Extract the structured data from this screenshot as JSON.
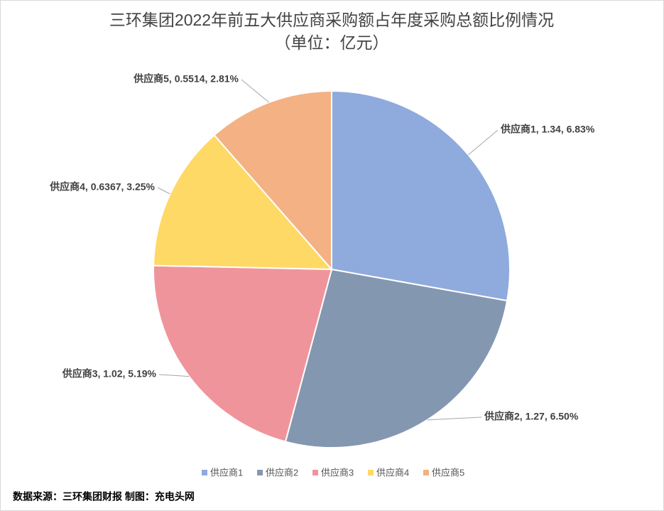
{
  "chart_data": {
    "type": "pie",
    "title": "三环集团2022年前五大供应商采购额占年度采购总额比例情况",
    "subtitle": "（单位：亿元）",
    "categories": [
      "供应商1",
      "供应商2",
      "供应商3",
      "供应商4",
      "供应商5"
    ],
    "values": [
      1.34,
      1.27,
      1.02,
      0.6367,
      0.5514
    ],
    "value_labels": [
      "供应商1, 1.34, 6.83%",
      "供应商2, 1.27, 6.50%",
      "供应商3, 1.02, 5.19%",
      "供应商4, 0.6367, 3.25%",
      "供应商5, 0.5514, 2.81%"
    ],
    "colors": [
      "#8faadc",
      "#8497b0",
      "#f0949c",
      "#ffd966",
      "#f4b183"
    ],
    "legend": "bottom",
    "source": "数据来源：三环集团财报 制图：充电头网"
  }
}
